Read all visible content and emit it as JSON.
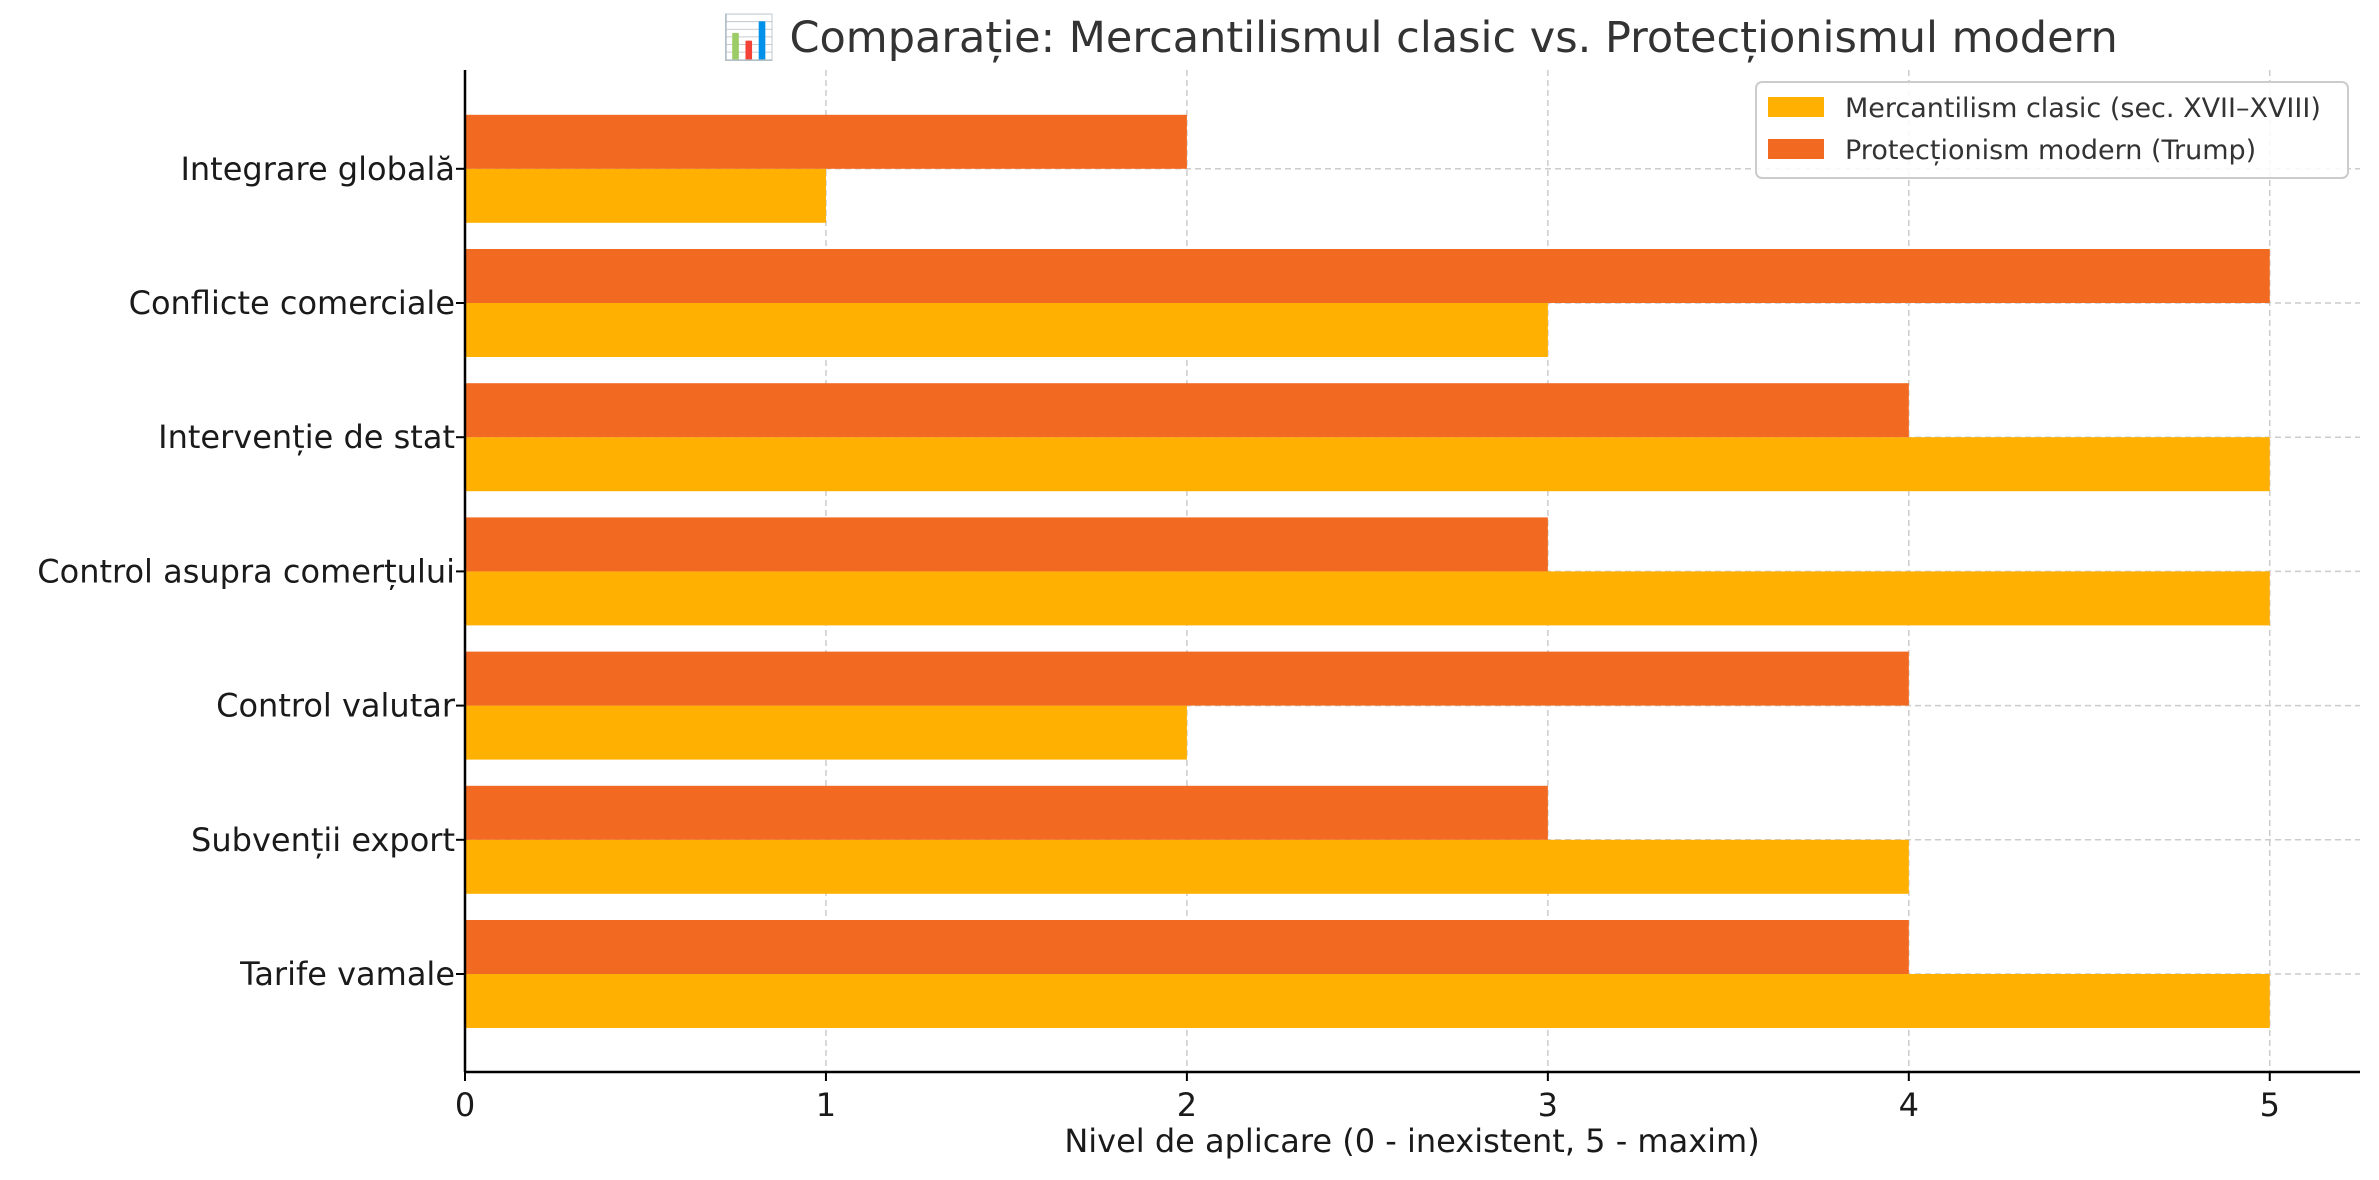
{
  "chart_data": {
    "type": "bar",
    "orientation": "horizontal",
    "title": "📊 Comparație: Mercantilismul clasic vs. Protecționismul modern",
    "xlabel": "Nivel de aplicare (0 - inexistent, 5 - maxim)",
    "ylabel": "",
    "xlim": [
      0,
      5.25
    ],
    "xticks": [
      "0",
      "1",
      "2",
      "3",
      "4",
      "5"
    ],
    "grid": true,
    "legend_position": "top-right",
    "categories": [
      "Tarife vamale",
      "Subvenții export",
      "Control valutar",
      "Control asupra comerțului",
      "Intervenție de stat",
      "Conflicte comerciale",
      "Integrare globală"
    ],
    "series": [
      {
        "name": "Mercantilism clasic (sec. XVII–XVIII)",
        "color": "#FFB000",
        "values": [
          5,
          4,
          2,
          5,
          5,
          3,
          1
        ]
      },
      {
        "name": "Protecționism modern (Trump)",
        "color": "#F26A21",
        "values": [
          4,
          3,
          4,
          3,
          4,
          5,
          2
        ]
      }
    ]
  }
}
